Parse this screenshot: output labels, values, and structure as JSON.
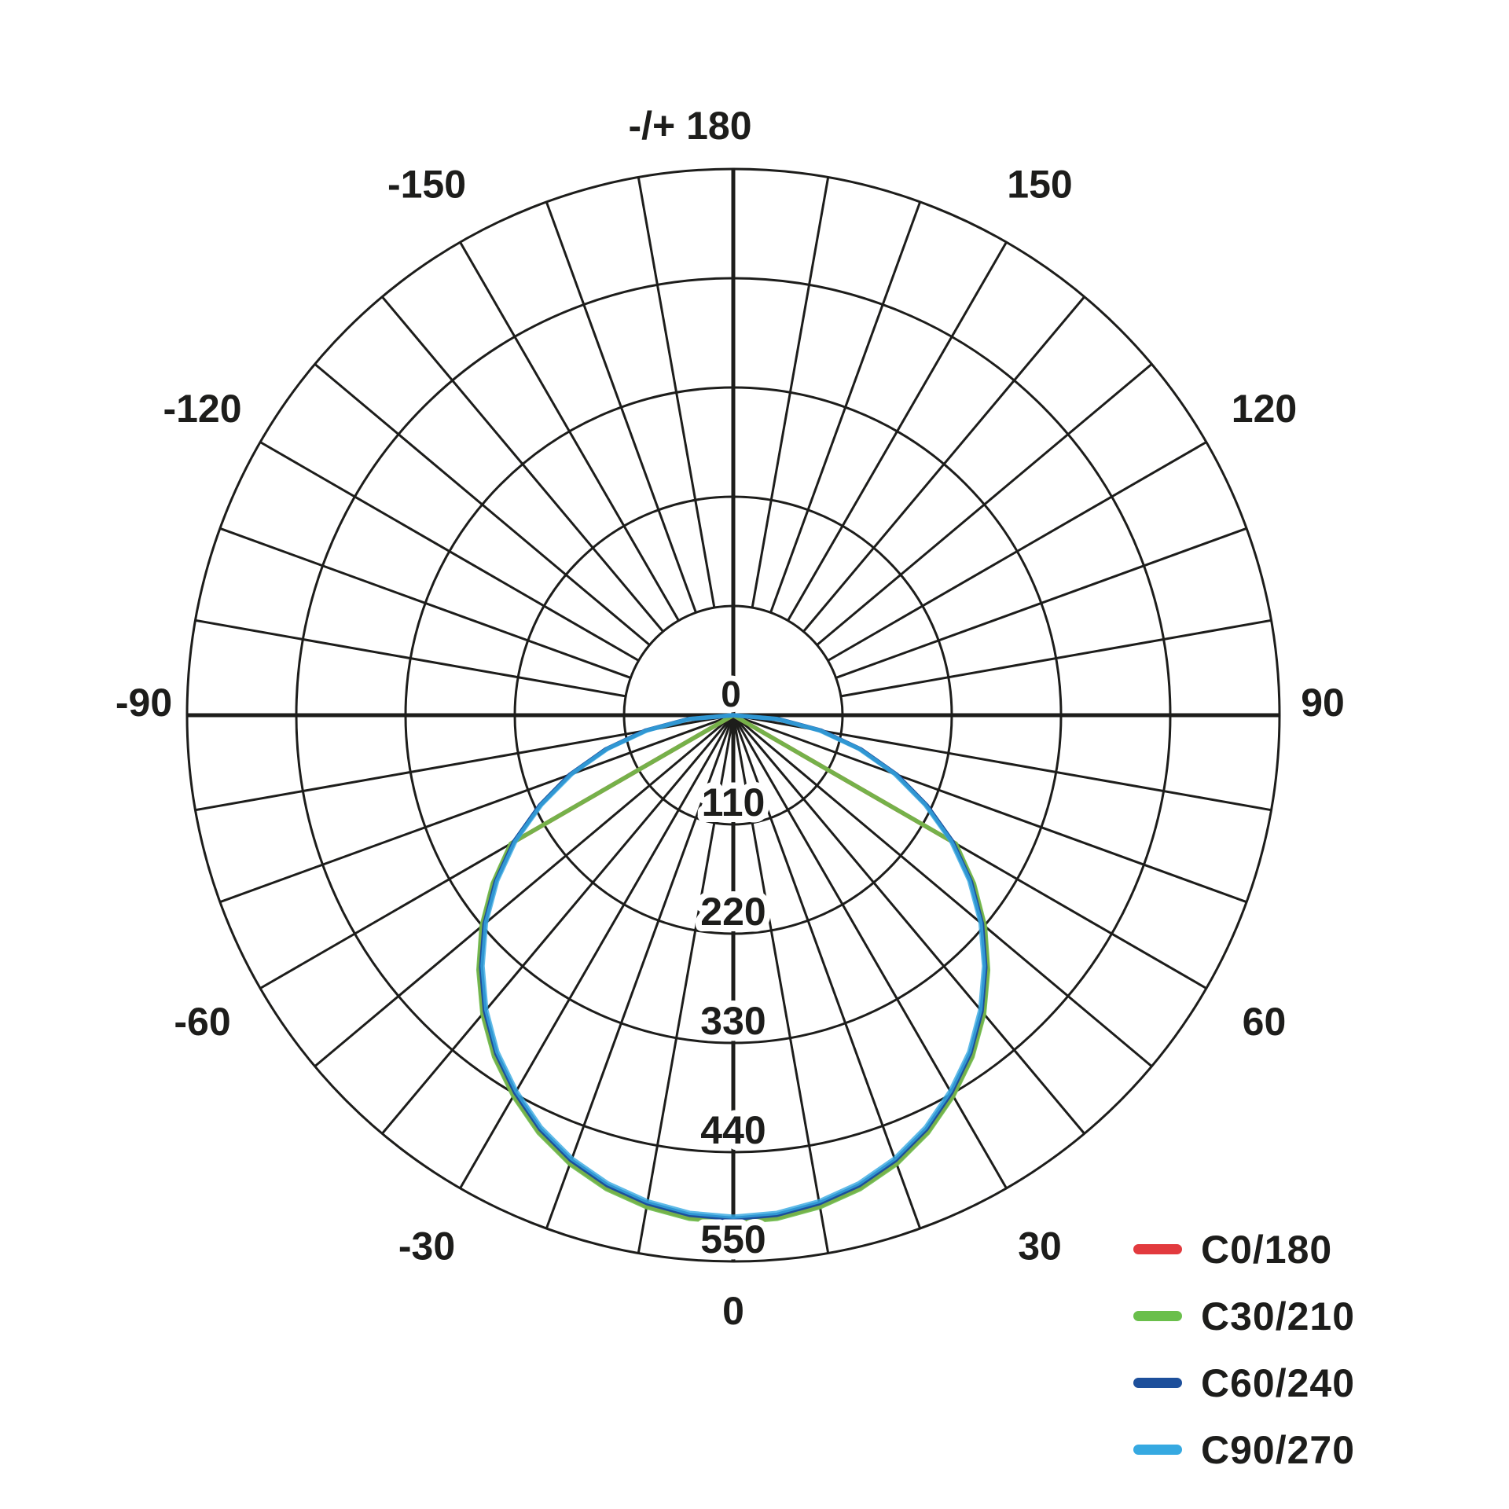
{
  "chart_data": {
    "type": "line",
    "subtype": "polar-photometric-intensity",
    "title": "",
    "grid": {
      "outer_value": 550,
      "ring_values": [
        110,
        220,
        330,
        440,
        550
      ],
      "ring_labels": [
        "110",
        "220",
        "330",
        "440",
        "550"
      ],
      "center_label": "0",
      "spoke_step_deg": 10,
      "angle_label_step_deg": 30,
      "grid_color": "#1d1d1b"
    },
    "angle_labels": [
      {
        "angle": 180,
        "text": "-/+ 180"
      },
      {
        "angle": 150,
        "text": "150"
      },
      {
        "angle": 120,
        "text": "120"
      },
      {
        "angle": 90,
        "text": "90"
      },
      {
        "angle": 60,
        "text": "60"
      },
      {
        "angle": 30,
        "text": "30"
      },
      {
        "angle": 0,
        "text": "0"
      },
      {
        "angle": -30,
        "text": "-30"
      },
      {
        "angle": -60,
        "text": "-60"
      },
      {
        "angle": -90,
        "text": "-90"
      },
      {
        "angle": -120,
        "text": "-120"
      },
      {
        "angle": -150,
        "text": "-150"
      }
    ],
    "gamma_deg": [
      -90,
      -85,
      -80,
      -75,
      -70,
      -65,
      -60,
      -55,
      -50,
      -45,
      -40,
      -35,
      -30,
      -25,
      -20,
      -15,
      -10,
      -5,
      0,
      5,
      10,
      15,
      20,
      25,
      30,
      35,
      40,
      45,
      50,
      55,
      60,
      65,
      70,
      75,
      80,
      85,
      90
    ],
    "series": [
      {
        "name": "C0/180",
        "color": "#e23a3e",
        "values": [
          0,
          0,
          0,
          0,
          0,
          0,
          258,
          295,
          330,
          362,
          392,
          419,
          442,
          463,
          480,
          493,
          502,
          508,
          510,
          508,
          502,
          493,
          480,
          463,
          442,
          419,
          392,
          362,
          330,
          295,
          258,
          0,
          0,
          0,
          0,
          0,
          0
        ]
      },
      {
        "name": "C30/210",
        "color": "#6abf4b",
        "values": [
          0,
          0,
          0,
          0,
          0,
          0,
          259,
          296,
          331,
          363,
          393,
          420,
          443,
          464,
          481,
          494,
          503,
          509,
          511,
          509,
          503,
          494,
          481,
          464,
          443,
          420,
          393,
          363,
          331,
          296,
          259,
          0,
          0,
          0,
          0,
          0,
          0
        ]
      },
      {
        "name": "C60/240",
        "color": "#1d4f9b",
        "values": [
          0,
          46,
          90,
          133,
          175,
          215,
          255,
          292,
          327,
          359,
          389,
          416,
          439,
          460,
          477,
          490,
          499,
          505,
          507,
          505,
          499,
          490,
          477,
          460,
          439,
          416,
          389,
          359,
          327,
          292,
          255,
          215,
          175,
          133,
          90,
          46,
          0
        ]
      },
      {
        "name": "C90/270",
        "color": "#36a9e1",
        "values": [
          0,
          44,
          88,
          131,
          173,
          213,
          253,
          290,
          325,
          357,
          387,
          414,
          437,
          458,
          475,
          488,
          497,
          503,
          505,
          503,
          497,
          488,
          475,
          458,
          437,
          414,
          387,
          357,
          325,
          290,
          253,
          213,
          173,
          131,
          88,
          44,
          0
        ]
      }
    ]
  },
  "legend": {
    "items": [
      {
        "label": "C0/180",
        "color": "#e23a3e"
      },
      {
        "label": "C30/210",
        "color": "#6abf4b"
      },
      {
        "label": "C60/240",
        "color": "#1d4f9b"
      },
      {
        "label": "C90/270",
        "color": "#36a9e1"
      }
    ]
  }
}
